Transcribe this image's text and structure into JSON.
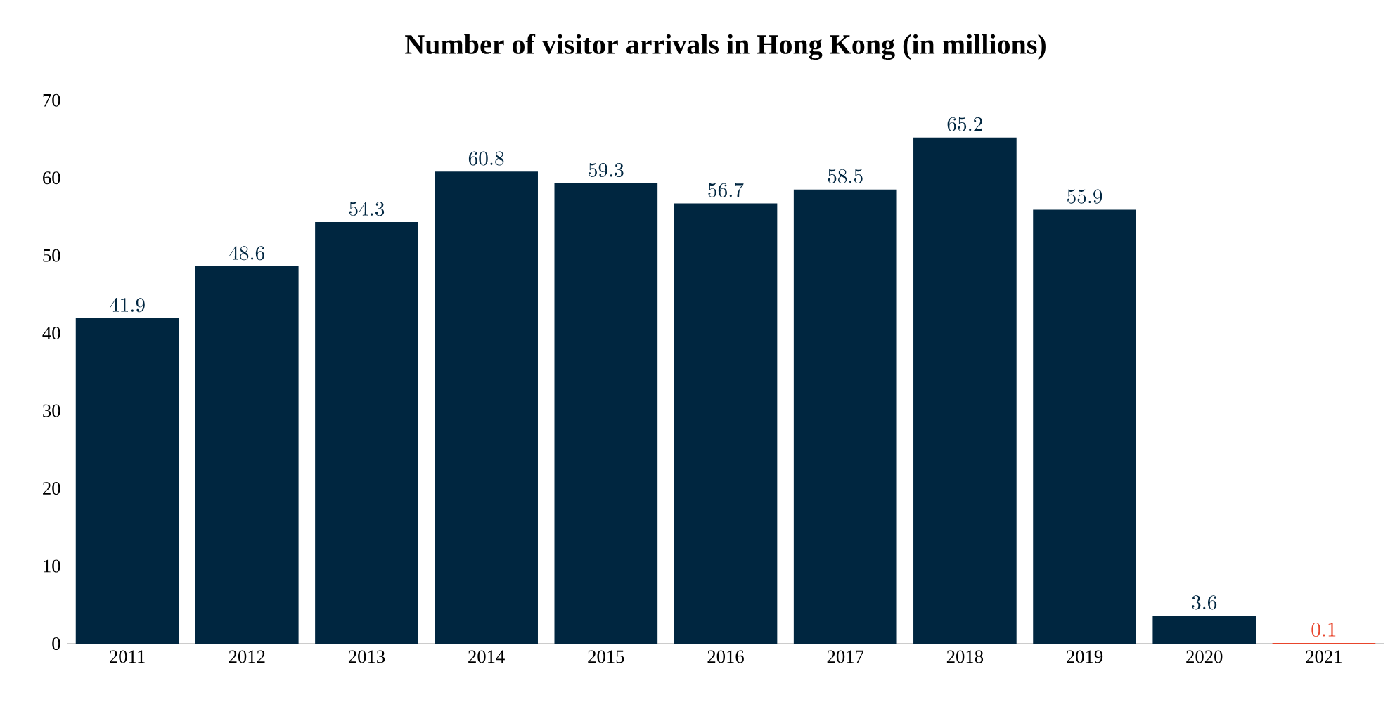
{
  "chart_data": {
    "type": "bar",
    "title": "Number of visitor arrivals in Hong Kong (in millions)",
    "categories": [
      "2011",
      "2012",
      "2013",
      "2014",
      "2015",
      "2016",
      "2017",
      "2018",
      "2019",
      "2020",
      "2021"
    ],
    "values": [
      41.9,
      48.6,
      54.3,
      60.8,
      59.3,
      56.7,
      58.5,
      65.2,
      55.9,
      3.6,
      0.1
    ],
    "colors": [
      "#002640",
      "#002640",
      "#002640",
      "#002640",
      "#002640",
      "#002640",
      "#002640",
      "#002640",
      "#002640",
      "#002640",
      "#e8452c"
    ],
    "ylim": [
      0,
      70
    ],
    "yticks": [
      0,
      10,
      20,
      30,
      40,
      50,
      60,
      70
    ],
    "data_labels": true,
    "grid": false
  }
}
